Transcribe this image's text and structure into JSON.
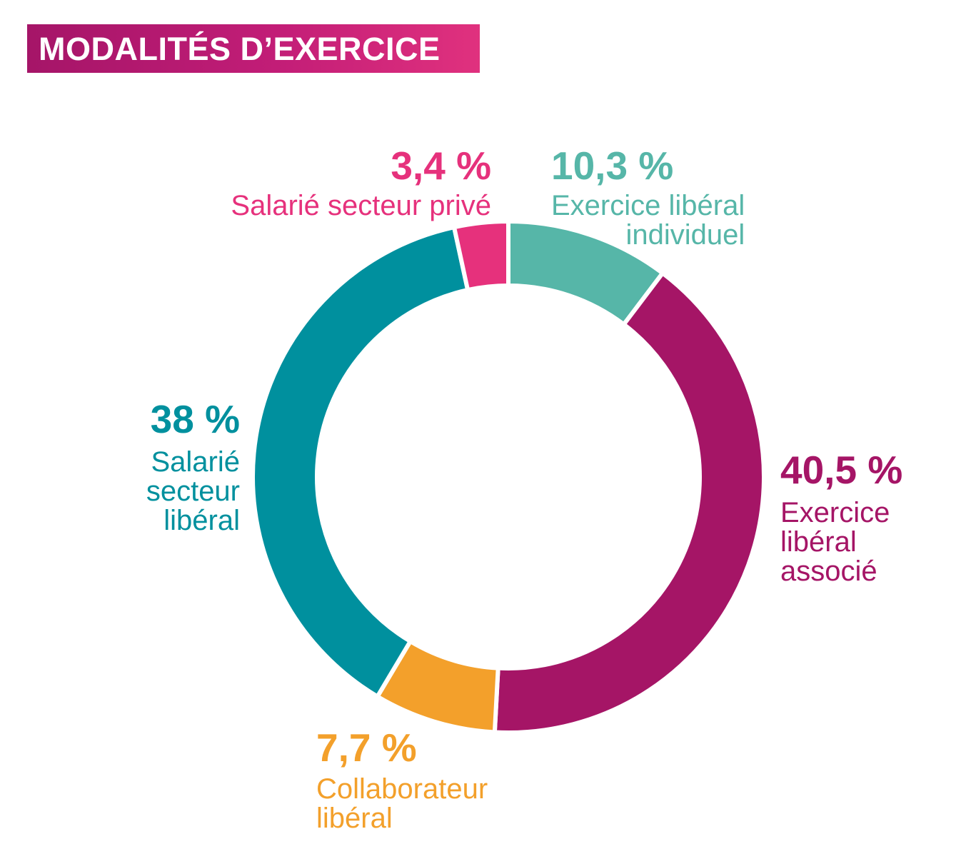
{
  "chart_data": {
    "type": "pie",
    "variant": "donut",
    "title": "MODALITÉS D’EXERCICE",
    "legend": "none",
    "slices": [
      {
        "label": "Exercice libéral individuel",
        "label_lines": [
          "Exercice libéral",
          "individuel"
        ],
        "value": 10.3,
        "value_label": "10,3 %",
        "color": "#56b6a8"
      },
      {
        "label": "Exercice libéral associé",
        "label_lines": [
          "Exercice",
          "libéral",
          "associé"
        ],
        "value": 40.5,
        "value_label": "40,5 %",
        "color": "#a51566"
      },
      {
        "label": "Collaborateur libéral",
        "label_lines": [
          "Collaborateur",
          "libéral"
        ],
        "value": 7.7,
        "value_label": "7,7 %",
        "color": "#f3a02b"
      },
      {
        "label": "Salarié secteur libéral",
        "label_lines": [
          "Salarié",
          "secteur",
          "libéral"
        ],
        "value": 38,
        "value_label": "38 %",
        "color": "#00909e"
      },
      {
        "label": "Salarié secteur privé",
        "label_lines": [
          "Salarié secteur privé"
        ],
        "value": 3.4,
        "value_label": "3,4 %",
        "color": "#e6317c"
      }
    ]
  }
}
